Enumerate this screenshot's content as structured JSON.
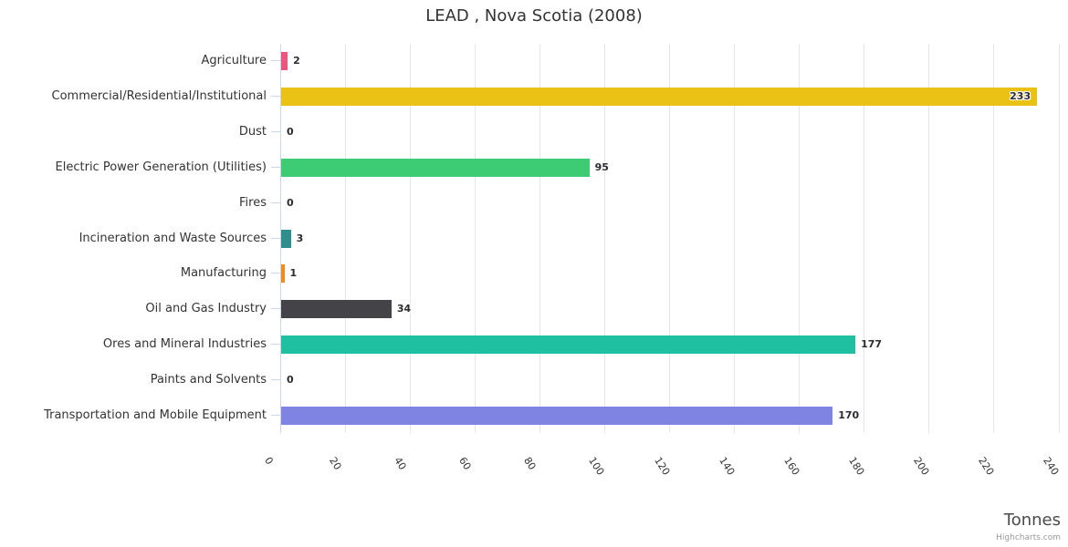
{
  "chart_data": {
    "type": "bar",
    "orientation": "horizontal",
    "title": "LEAD , Nova Scotia (2008)",
    "categories": [
      "Agriculture",
      "Commercial/Residential/Institutional",
      "Dust",
      "Electric Power Generation (Utilities)",
      "Fires",
      "Incineration and Waste Sources",
      "Manufacturing",
      "Oil and Gas Industry",
      "Ores and Mineral Industries",
      "Paints and Solvents",
      "Transportation and Mobile Equipment"
    ],
    "values": [
      2,
      233,
      0,
      95,
      0,
      3,
      1,
      34,
      177,
      0,
      170
    ],
    "bar_colors": [
      "#ed557e",
      "#e9c215",
      null,
      "#3dcb73",
      null,
      "#2f8e8c",
      "#ef8c21",
      "#434348",
      "#1fc0a1",
      null,
      "#7f84e3"
    ],
    "x_ticks": [
      0,
      20,
      40,
      60,
      80,
      100,
      120,
      140,
      160,
      180,
      200,
      220,
      240
    ],
    "xlim": [
      0,
      240
    ],
    "axis_title": "Tonnes",
    "grid": "vertical-only",
    "legend": "none"
  },
  "style_colors": {
    "gridline": "#e6e6e6",
    "axis_and_ticks": "#ccd6eb",
    "title_text": "#333333",
    "value_label_text": "#2b2b30",
    "credits_text": "#999999"
  },
  "credits": {
    "label": "Highcharts.com"
  }
}
